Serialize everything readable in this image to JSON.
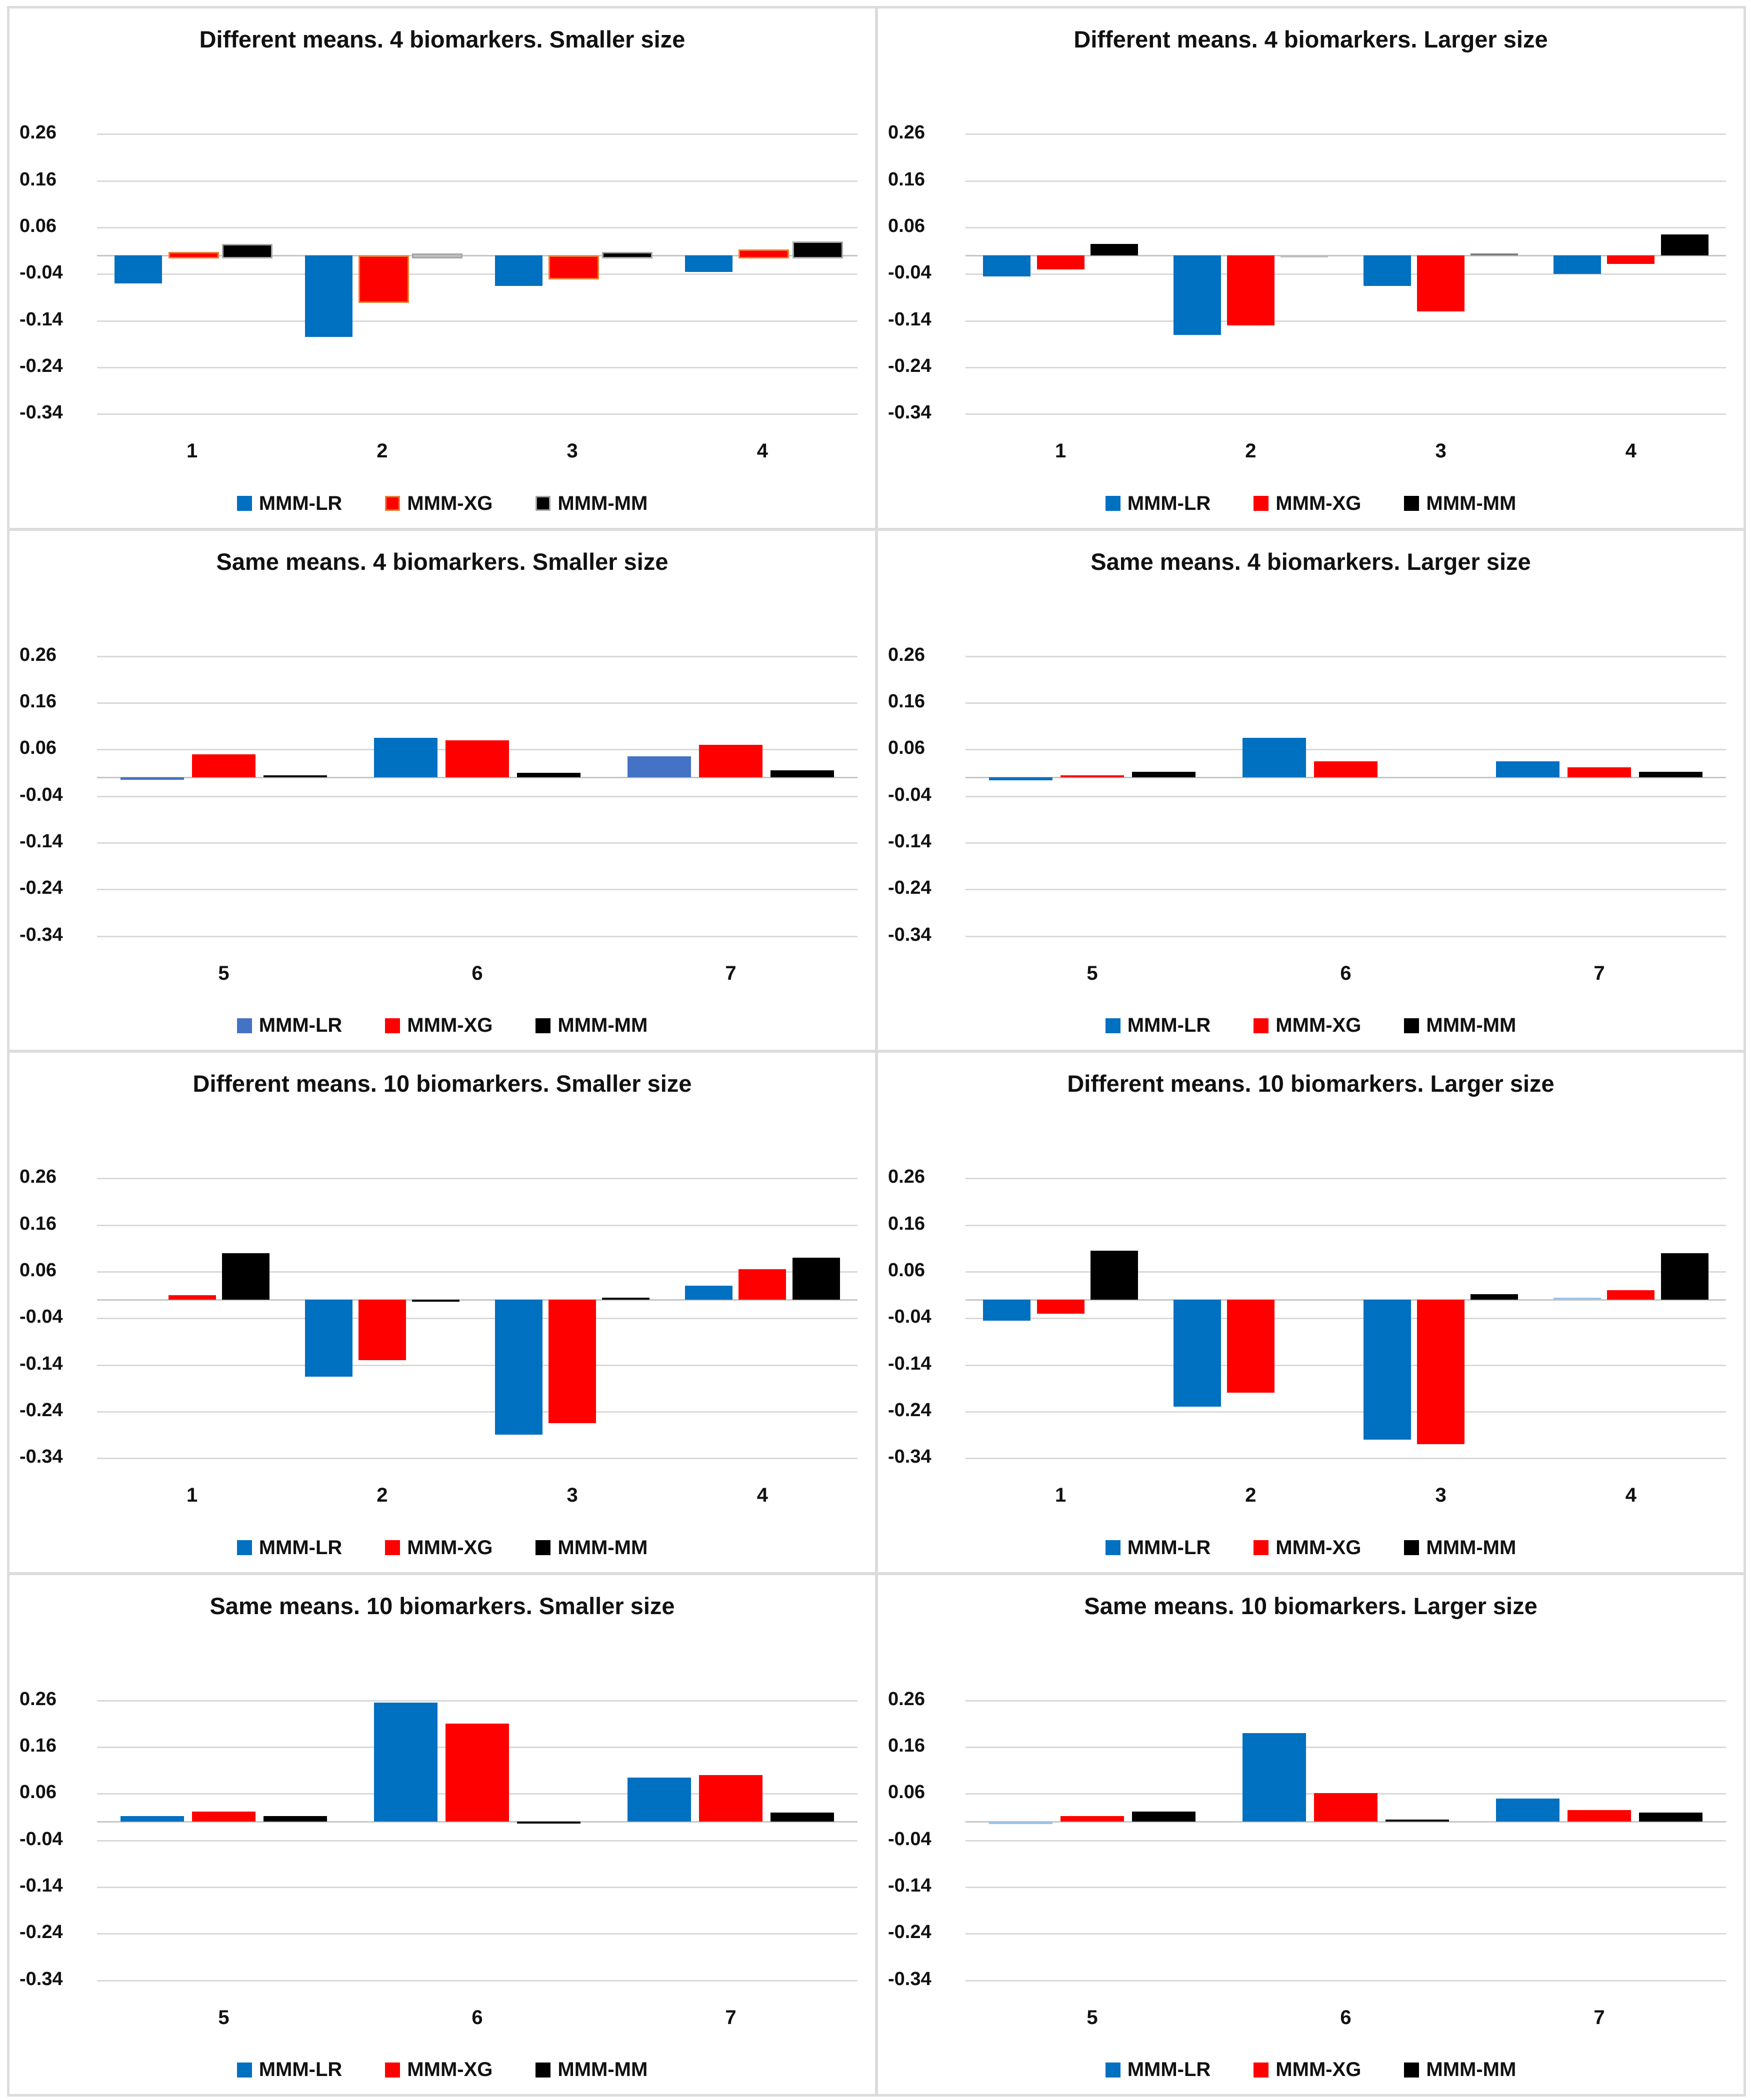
{
  "page": {
    "background": "#FFFFFF",
    "frame_color": "#DCDCDC",
    "gridline_color": "#D9D9D9",
    "zero_axis_color": "#C6C6C6",
    "text_color": "#111111"
  },
  "colors": {
    "mmm_lr_blue": "#0070C0",
    "mmm_lr_light_blue": "#4472C4",
    "mmm_lr_pale_blue": "#9DC3E6",
    "mmm_xg_red": "#FF0000",
    "mmm_xg_border_orange": "#ED7D31",
    "mmm_mm_black": "#000000",
    "mmm_mm_border_gray": "#A6A6A6",
    "sliver_gray": "#BFBFBF",
    "sliver_dark_gray": "#7F7F7F"
  },
  "axis": {
    "ticks": [
      "0.26",
      "0.16",
      "0.06",
      "-0.04",
      "-0.14",
      "-0.24",
      "-0.34"
    ],
    "tick_values": [
      0.26,
      0.16,
      0.06,
      -0.04,
      -0.14,
      -0.24,
      -0.34
    ]
  },
  "chart_data": [
    {
      "type": "bar",
      "title": "Different means. 4 biomarkers. Smaller size",
      "categories": [
        "1",
        "2",
        "3",
        "4"
      ],
      "ylim": [
        -0.34,
        0.26
      ],
      "grid": true,
      "legend_position": "bottom",
      "series": [
        {
          "name": "MMM-LR",
          "color": "#0070C0",
          "values": [
            -0.06,
            -0.175,
            -0.065,
            -0.035
          ]
        },
        {
          "name": "MMM-XG",
          "color": "#FF0000",
          "values": [
            0.007,
            -0.095,
            -0.045,
            0.013
          ]
        },
        {
          "name": "MMM-MM",
          "color": "#000000",
          "values": [
            0.025,
            0.002,
            0.007,
            0.03
          ]
        }
      ],
      "series_borders": [
        null,
        "#ED7D31",
        "#A6A6A6"
      ],
      "overrides": [
        {
          "series": 2,
          "index": 1,
          "color": "#BFBFBF"
        }
      ]
    },
    {
      "type": "bar",
      "title": "Different means. 4 biomarkers. Larger size",
      "categories": [
        "1",
        "2",
        "3",
        "4"
      ],
      "ylim": [
        -0.34,
        0.26
      ],
      "grid": true,
      "legend_position": "bottom",
      "series": [
        {
          "name": "MMM-LR",
          "color": "#0070C0",
          "values": [
            -0.045,
            -0.17,
            -0.065,
            -0.04
          ]
        },
        {
          "name": "MMM-XG",
          "color": "#FF0000",
          "values": [
            -0.03,
            -0.15,
            -0.12,
            -0.018
          ]
        },
        {
          "name": "MMM-MM",
          "color": "#000000",
          "values": [
            0.025,
            -0.003,
            0.004,
            0.045
          ]
        }
      ],
      "series_borders": [
        null,
        null,
        null
      ],
      "overrides": [
        {
          "series": 2,
          "index": 1,
          "color": "#BFBFBF"
        },
        {
          "series": 2,
          "index": 2,
          "color": "#7F7F7F"
        }
      ]
    },
    {
      "type": "bar",
      "title": "Same means. 4 biomarkers. Smaller size",
      "categories": [
        "5",
        "6",
        "7"
      ],
      "ylim": [
        -0.34,
        0.26
      ],
      "grid": true,
      "legend_position": "bottom",
      "series": [
        {
          "name": "MMM-LR",
          "color": "#0070C0",
          "values": [
            -0.005,
            0.085,
            0.045
          ]
        },
        {
          "name": "MMM-XG",
          "color": "#FF0000",
          "values": [
            0.05,
            0.08,
            0.07
          ]
        },
        {
          "name": "MMM-MM",
          "color": "#000000",
          "values": [
            0.003,
            0.01,
            0.015
          ]
        }
      ],
      "series_borders": [
        null,
        null,
        null
      ],
      "legend_colors": [
        "#4472C4",
        "#FF0000",
        "#000000"
      ],
      "overrides": [
        {
          "series": 0,
          "index": 0,
          "color": "#4472C4"
        },
        {
          "series": 0,
          "index": 2,
          "color": "#4472C4"
        }
      ]
    },
    {
      "type": "bar",
      "title": "Same means. 4 biomarkers. Larger size",
      "categories": [
        "5",
        "6",
        "7"
      ],
      "ylim": [
        -0.34,
        0.26
      ],
      "grid": true,
      "legend_position": "bottom",
      "series": [
        {
          "name": "MMM-LR",
          "color": "#0070C0",
          "values": [
            -0.006,
            0.085,
            0.035
          ]
        },
        {
          "name": "MMM-XG",
          "color": "#FF0000",
          "values": [
            0.005,
            0.035,
            0.022
          ]
        },
        {
          "name": "MMM-MM",
          "color": "#000000",
          "values": [
            0.012,
            0,
            0.012
          ]
        }
      ],
      "series_borders": [
        null,
        null,
        null
      ],
      "overrides": []
    },
    {
      "type": "bar",
      "title": "Different means. 10 biomarkers. Smaller size",
      "categories": [
        "1",
        "2",
        "3",
        "4"
      ],
      "ylim": [
        -0.34,
        0.26
      ],
      "grid": true,
      "legend_position": "bottom",
      "series": [
        {
          "name": "MMM-LR",
          "color": "#0070C0",
          "values": [
            0,
            -0.165,
            -0.29,
            0.03
          ]
        },
        {
          "name": "MMM-XG",
          "color": "#FF0000",
          "values": [
            0.01,
            -0.13,
            -0.265,
            0.065
          ]
        },
        {
          "name": "MMM-MM",
          "color": "#000000",
          "values": [
            0.1,
            -0.003,
            0.004,
            0.09
          ]
        }
      ],
      "series_borders": [
        null,
        null,
        null
      ],
      "overrides": []
    },
    {
      "type": "bar",
      "title": "Different means. 10 biomarkers. Larger size",
      "categories": [
        "1",
        "2",
        "3",
        "4"
      ],
      "ylim": [
        -0.34,
        0.26
      ],
      "grid": true,
      "legend_position": "bottom",
      "series": [
        {
          "name": "MMM-LR",
          "color": "#0070C0",
          "values": [
            -0.045,
            -0.23,
            -0.3,
            0.003
          ]
        },
        {
          "name": "MMM-XG",
          "color": "#FF0000",
          "values": [
            -0.03,
            -0.2,
            -0.31,
            0.02
          ]
        },
        {
          "name": "MMM-MM",
          "color": "#000000",
          "values": [
            0.105,
            0,
            0.012,
            0.1
          ]
        }
      ],
      "series_borders": [
        null,
        null,
        null
      ],
      "overrides": [
        {
          "series": 0,
          "index": 3,
          "color": "#9DC3E6"
        }
      ]
    },
    {
      "type": "bar",
      "title": "Same means. 10 biomarkers. Smaller size",
      "categories": [
        "5",
        "6",
        "7"
      ],
      "ylim": [
        -0.34,
        0.26
      ],
      "grid": true,
      "legend_position": "bottom",
      "series": [
        {
          "name": "MMM-LR",
          "color": "#0070C0",
          "values": [
            0.012,
            0.255,
            0.095
          ]
        },
        {
          "name": "MMM-XG",
          "color": "#FF0000",
          "values": [
            0.022,
            0.21,
            0.1
          ]
        },
        {
          "name": "MMM-MM",
          "color": "#000000",
          "values": [
            0.012,
            -0.003,
            0.02
          ]
        }
      ],
      "series_borders": [
        null,
        null,
        null
      ],
      "overrides": []
    },
    {
      "type": "bar",
      "title": "Same means. 10 biomarkers. Larger size",
      "categories": [
        "5",
        "6",
        "7"
      ],
      "ylim": [
        -0.34,
        0.26
      ],
      "grid": true,
      "legend_position": "bottom",
      "series": [
        {
          "name": "MMM-LR",
          "color": "#0070C0",
          "values": [
            -0.005,
            0.19,
            0.05
          ]
        },
        {
          "name": "MMM-XG",
          "color": "#FF0000",
          "values": [
            0.012,
            0.062,
            0.025
          ]
        },
        {
          "name": "MMM-MM",
          "color": "#000000",
          "values": [
            0.022,
            0.002,
            0.02
          ]
        }
      ],
      "series_borders": [
        null,
        null,
        null
      ],
      "overrides": [
        {
          "series": 0,
          "index": 0,
          "color": "#9DC3E6"
        }
      ]
    }
  ]
}
